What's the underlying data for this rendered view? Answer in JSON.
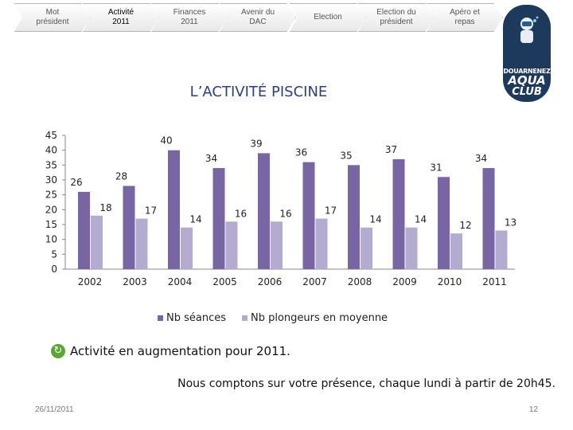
{
  "nav": {
    "items": [
      {
        "label": "Mot\nprésident",
        "active": false
      },
      {
        "label": "Activité\n2011",
        "active": true
      },
      {
        "label": "Finances\n2011",
        "active": false
      },
      {
        "label": "Avenir du\nDAC",
        "active": false
      },
      {
        "label": "Election",
        "active": false
      },
      {
        "label": "Election du\nprésident",
        "active": false
      },
      {
        "label": "Apéro et\nrepas",
        "active": false
      }
    ]
  },
  "logo": {
    "line1": "DOUARNENEZ",
    "line2": "AQUA",
    "line3": "CLUB"
  },
  "page_title": "L’ACTIVITÉ PISCINE",
  "chart_data": {
    "type": "bar",
    "title": "L’ACTIVITÉ PISCINE",
    "categories": [
      "2002",
      "2003",
      "2004",
      "2005",
      "2006",
      "2007",
      "2008",
      "2009",
      "2010",
      "2011"
    ],
    "series": [
      {
        "name": "Nb séances",
        "color": "#7766a3",
        "values": [
          26,
          28,
          40,
          34,
          39,
          36,
          35,
          37,
          31,
          34
        ]
      },
      {
        "name": "Nb plongeurs en moyenne",
        "color": "#b4acd0",
        "values": [
          18,
          17,
          14,
          16,
          16,
          17,
          14,
          14,
          12,
          13
        ]
      }
    ],
    "yticks": [
      "0",
      "5",
      "10",
      "15",
      "20",
      "25",
      "30",
      "35",
      "40",
      "45"
    ],
    "ylim": [
      0,
      45
    ],
    "xlabel": "",
    "ylabel": "",
    "legend_position": "bottom"
  },
  "bullet": {
    "text": "Activité en augmentation pour 2011."
  },
  "notice": "Nous comptons sur votre présence, chaque lundi à partir de 20h45.",
  "footer": {
    "date": "26/11/2011",
    "page": "12"
  }
}
